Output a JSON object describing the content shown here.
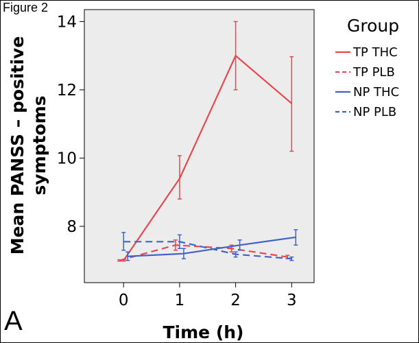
{
  "figure_label": "Figure 2",
  "panel_label": "A",
  "chart_data": {
    "type": "line",
    "xlabel": "Time (h)",
    "ylabel": [
      "Mean PANSS – positive",
      "symptoms"
    ],
    "x": [
      0,
      1,
      2,
      3
    ],
    "x_ticks": [
      "0",
      "1",
      "2",
      "3"
    ],
    "y_ticks": [
      "8",
      "10",
      "12",
      "14"
    ],
    "xlim": [
      -0.7,
      3.4
    ],
    "ylim": [
      6.35,
      14.35
    ],
    "grid": false,
    "error_bars": true,
    "background": "#ececec",
    "legend": {
      "title": "Group",
      "placement": "right"
    },
    "series": [
      {
        "name": "TP THC",
        "color": "#e8474b",
        "dash": "solid",
        "values": [
          7.0,
          9.4,
          13.0,
          11.6
        ],
        "err_low": [
          6.98,
          8.8,
          12.0,
          10.2
        ],
        "err_high": [
          7.02,
          10.07,
          14.0,
          12.97
        ]
      },
      {
        "name": "TP PLB",
        "color": "#e8474b",
        "dash": "dashed",
        "values": [
          7.0,
          7.45,
          7.35,
          7.1
        ],
        "err_low": [
          6.98,
          7.3,
          7.25,
          7.05
        ],
        "err_high": [
          7.02,
          7.6,
          7.45,
          7.15
        ]
      },
      {
        "name": "NP THC",
        "color": "#3f62c7",
        "dash": "solid",
        "values": [
          7.12,
          7.2,
          7.45,
          7.68
        ],
        "err_low": [
          7.0,
          7.05,
          7.3,
          7.45
        ],
        "err_high": [
          7.25,
          7.35,
          7.6,
          7.9
        ]
      },
      {
        "name": "NP PLB",
        "color": "#3f62c7",
        "dash": "dashed",
        "values": [
          7.55,
          7.55,
          7.18,
          7.05
        ],
        "err_low": [
          7.3,
          7.35,
          7.1,
          7.0
        ],
        "err_high": [
          7.82,
          7.75,
          7.25,
          7.1
        ]
      }
    ]
  }
}
